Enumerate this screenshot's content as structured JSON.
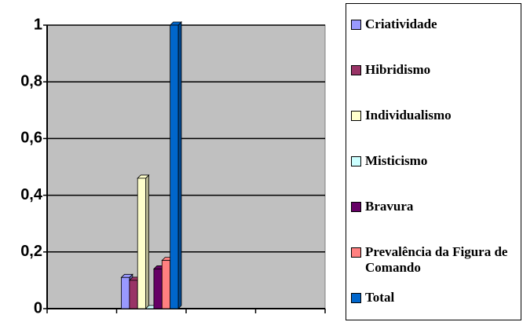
{
  "chart_data": {
    "type": "bar",
    "categories": [
      null,
      null,
      null,
      null
    ],
    "series": [
      {
        "name": "Criatividade",
        "color": "#9999ff",
        "values": [
          null,
          0.11,
          null,
          null
        ]
      },
      {
        "name": "Hibridismo",
        "color": "#993366",
        "values": [
          null,
          0.1,
          null,
          null
        ]
      },
      {
        "name": "Individualismo",
        "color": "#ffffcc",
        "values": [
          null,
          0.46,
          null,
          null
        ]
      },
      {
        "name": "Misticismo",
        "color": "#ccffff",
        "values": [
          null,
          0,
          null,
          null
        ]
      },
      {
        "name": "Bravura",
        "color": "#660066",
        "values": [
          null,
          0.14,
          null,
          null
        ]
      },
      {
        "name": "Prevalência da Figura de Comando",
        "color": "#ff8080",
        "values": [
          null,
          0.17,
          null,
          null
        ]
      },
      {
        "name": "Total",
        "color": "#0066cc",
        "values": [
          null,
          1,
          null,
          null
        ]
      }
    ],
    "ylim": [
      0,
      1
    ],
    "yticks": [
      0,
      {
        "value": 0.2,
        "label": "0,2"
      },
      {
        "value": 0.4,
        "label": "0,4"
      },
      {
        "value": 0.6,
        "label": "0,6"
      },
      {
        "value": 0.8,
        "label": "0,8"
      },
      1
    ],
    "grid": true,
    "legend": "right"
  }
}
